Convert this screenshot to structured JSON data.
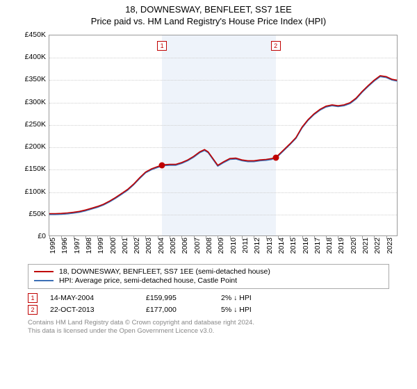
{
  "title": {
    "line1": "18, DOWNESWAY, BENFLEET, SS7 1EE",
    "line2": "Price paid vs. HM Land Registry's House Price Index (HPI)"
  },
  "chart": {
    "type": "line",
    "background_color": "#ffffff",
    "grid_color": "#cfcfcf",
    "border_color": "#9a9a9a",
    "shade_color": "#eef3fa",
    "x_years": [
      1995,
      1996,
      1997,
      1998,
      1999,
      2000,
      2001,
      2002,
      2003,
      2004,
      2005,
      2006,
      2007,
      2008,
      2009,
      2010,
      2011,
      2012,
      2013,
      2014,
      2015,
      2016,
      2017,
      2018,
      2019,
      2020,
      2021,
      2022,
      2023
    ],
    "ylim": [
      0,
      450000
    ],
    "ytick_step": 50000,
    "yticks": [
      "£0",
      "£50K",
      "£100K",
      "£150K",
      "£200K",
      "£250K",
      "£300K",
      "£350K",
      "£400K",
      "£450K"
    ],
    "shade_range": [
      2004.37,
      2013.81
    ],
    "series": [
      {
        "name": "property",
        "label": "18, DOWNESWAY, BENFLEET, SS7 1EE (semi-detached house)",
        "color": "#c00000",
        "width": 1.6,
        "points": [
          [
            1995.0,
            52000
          ],
          [
            1995.5,
            52000
          ],
          [
            1996.0,
            52500
          ],
          [
            1996.5,
            53500
          ],
          [
            1997.0,
            55000
          ],
          [
            1997.5,
            57000
          ],
          [
            1998.0,
            60000
          ],
          [
            1998.5,
            64000
          ],
          [
            1999.0,
            68000
          ],
          [
            1999.5,
            73000
          ],
          [
            2000.0,
            80000
          ],
          [
            2000.5,
            88000
          ],
          [
            2001.0,
            97000
          ],
          [
            2001.5,
            106000
          ],
          [
            2002.0,
            118000
          ],
          [
            2002.5,
            132000
          ],
          [
            2003.0,
            145000
          ],
          [
            2003.5,
            152000
          ],
          [
            2004.0,
            157000
          ],
          [
            2004.37,
            159995
          ],
          [
            2004.5,
            161000
          ],
          [
            2005.0,
            162000
          ],
          [
            2005.5,
            162000
          ],
          [
            2006.0,
            166000
          ],
          [
            2006.5,
            172000
          ],
          [
            2007.0,
            180000
          ],
          [
            2007.5,
            190000
          ],
          [
            2007.9,
            195000
          ],
          [
            2008.2,
            190000
          ],
          [
            2008.6,
            175000
          ],
          [
            2009.0,
            160000
          ],
          [
            2009.5,
            168000
          ],
          [
            2010.0,
            175000
          ],
          [
            2010.5,
            176000
          ],
          [
            2011.0,
            172000
          ],
          [
            2011.5,
            170000
          ],
          [
            2012.0,
            170000
          ],
          [
            2012.5,
            172000
          ],
          [
            2013.0,
            173000
          ],
          [
            2013.5,
            175000
          ],
          [
            2013.81,
            177000
          ],
          [
            2014.0,
            182000
          ],
          [
            2014.5,
            195000
          ],
          [
            2015.0,
            208000
          ],
          [
            2015.5,
            222000
          ],
          [
            2016.0,
            245000
          ],
          [
            2016.5,
            262000
          ],
          [
            2017.0,
            275000
          ],
          [
            2017.5,
            285000
          ],
          [
            2018.0,
            292000
          ],
          [
            2018.5,
            295000
          ],
          [
            2019.0,
            293000
          ],
          [
            2019.5,
            295000
          ],
          [
            2020.0,
            300000
          ],
          [
            2020.5,
            310000
          ],
          [
            2021.0,
            325000
          ],
          [
            2021.5,
            338000
          ],
          [
            2022.0,
            350000
          ],
          [
            2022.5,
            360000
          ],
          [
            2023.0,
            358000
          ],
          [
            2023.5,
            352000
          ],
          [
            2023.9,
            350000
          ]
        ]
      },
      {
        "name": "hpi",
        "label": "HPI: Average price, semi-detached house, Castle Point",
        "color": "#3b6fb6",
        "width": 1.6,
        "points": [
          [
            1995.0,
            50000
          ],
          [
            1995.5,
            50000
          ],
          [
            1996.0,
            50500
          ],
          [
            1996.5,
            51500
          ],
          [
            1997.0,
            53000
          ],
          [
            1997.5,
            55000
          ],
          [
            1998.0,
            58000
          ],
          [
            1998.5,
            62000
          ],
          [
            1999.0,
            66000
          ],
          [
            1999.5,
            71000
          ],
          [
            2000.0,
            78000
          ],
          [
            2000.5,
            86000
          ],
          [
            2001.0,
            95000
          ],
          [
            2001.5,
            104000
          ],
          [
            2002.0,
            116000
          ],
          [
            2002.5,
            130000
          ],
          [
            2003.0,
            143000
          ],
          [
            2003.5,
            150000
          ],
          [
            2004.0,
            155000
          ],
          [
            2004.5,
            159000
          ],
          [
            2005.0,
            160000
          ],
          [
            2005.5,
            160000
          ],
          [
            2006.0,
            164000
          ],
          [
            2006.5,
            170000
          ],
          [
            2007.0,
            178000
          ],
          [
            2007.5,
            188000
          ],
          [
            2007.9,
            193000
          ],
          [
            2008.2,
            188000
          ],
          [
            2008.6,
            173000
          ],
          [
            2009.0,
            158000
          ],
          [
            2009.5,
            166000
          ],
          [
            2010.0,
            173000
          ],
          [
            2010.5,
            174000
          ],
          [
            2011.0,
            170000
          ],
          [
            2011.5,
            168000
          ],
          [
            2012.0,
            168000
          ],
          [
            2012.5,
            170000
          ],
          [
            2013.0,
            171000
          ],
          [
            2013.5,
            173000
          ],
          [
            2014.0,
            180000
          ],
          [
            2014.5,
            193000
          ],
          [
            2015.0,
            206000
          ],
          [
            2015.5,
            220000
          ],
          [
            2016.0,
            243000
          ],
          [
            2016.5,
            260000
          ],
          [
            2017.0,
            273000
          ],
          [
            2017.5,
            283000
          ],
          [
            2018.0,
            290000
          ],
          [
            2018.5,
            293000
          ],
          [
            2019.0,
            291000
          ],
          [
            2019.5,
            293000
          ],
          [
            2020.0,
            298000
          ],
          [
            2020.5,
            308000
          ],
          [
            2021.0,
            323000
          ],
          [
            2021.5,
            336000
          ],
          [
            2022.0,
            348000
          ],
          [
            2022.5,
            358000
          ],
          [
            2023.0,
            356000
          ],
          [
            2023.5,
            350000
          ],
          [
            2023.9,
            348000
          ]
        ]
      }
    ],
    "markers": [
      {
        "idx": "1",
        "x": 2004.37,
        "y": 159995
      },
      {
        "idx": "2",
        "x": 2013.81,
        "y": 177000
      }
    ]
  },
  "legend": {
    "items": [
      {
        "color": "#c00000",
        "label": "18, DOWNESWAY, BENFLEET, SS7 1EE (semi-detached house)"
      },
      {
        "color": "#3b6fb6",
        "label": "HPI: Average price, semi-detached house, Castle Point"
      }
    ]
  },
  "transactions": [
    {
      "idx": "1",
      "date": "14-MAY-2004",
      "price": "£159,995",
      "diff": "2% ↓ HPI"
    },
    {
      "idx": "2",
      "date": "22-OCT-2013",
      "price": "£177,000",
      "diff": "5% ↓ HPI"
    }
  ],
  "credits": {
    "line1": "Contains HM Land Registry data © Crown copyright and database right 2024.",
    "line2": "This data is licensed under the Open Government Licence v3.0."
  }
}
